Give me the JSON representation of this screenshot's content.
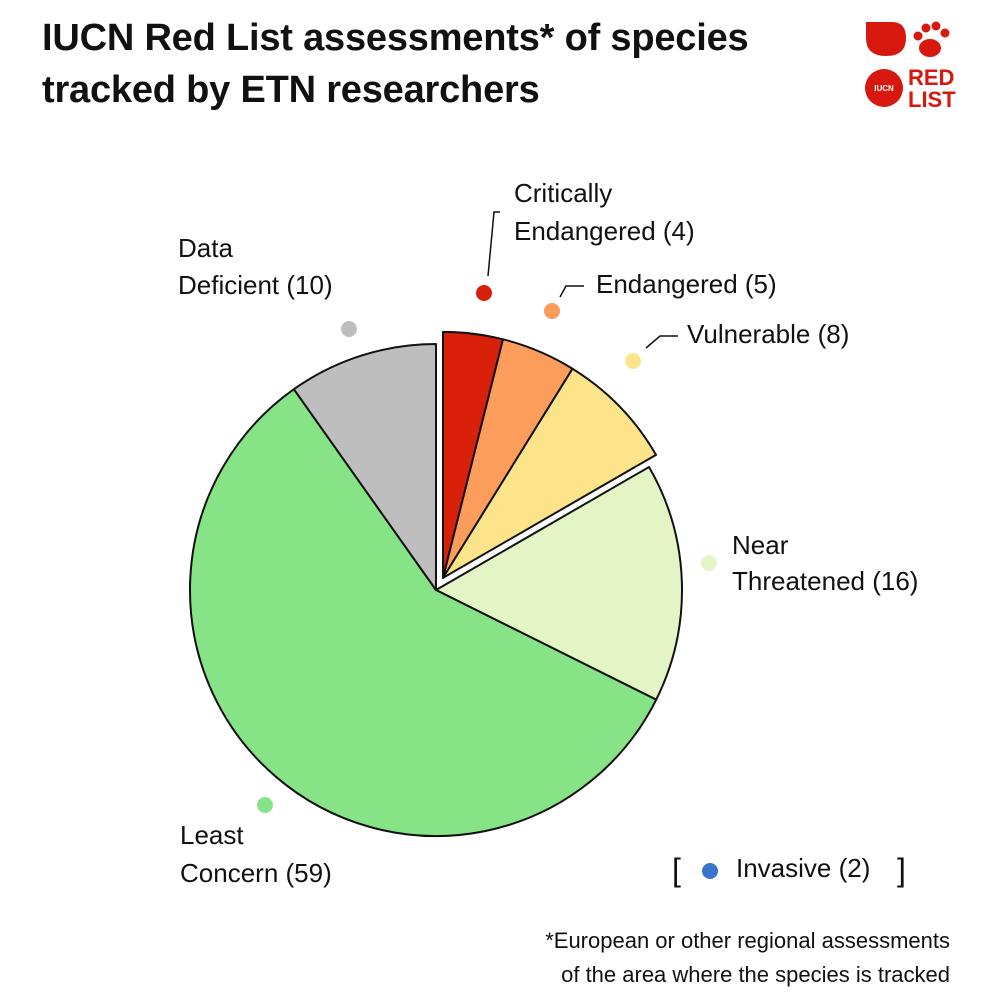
{
  "title_line1": "IUCN Red List assessments* of species",
  "title_line2": "tracked by ETN researchers",
  "logo": {
    "line1": "RED",
    "line2": "LIST",
    "badge": "IUCN",
    "color": "#d7180f"
  },
  "chart_data": {
    "type": "pie",
    "start_angle_deg": 0,
    "direction": "clockwise",
    "slices": [
      {
        "label_lines": [
          "Critically",
          "Endangered (4)"
        ],
        "category": "Critically Endangered",
        "value": 4,
        "color": "#d9200a",
        "exploded": true
      },
      {
        "label_lines": [
          "Endangered (5)"
        ],
        "category": "Endangered",
        "value": 5,
        "color": "#fc9d5b",
        "exploded": true
      },
      {
        "label_lines": [
          "Vulnerable (8)"
        ],
        "category": "Vulnerable",
        "value": 8,
        "color": "#fde48a",
        "exploded": true
      },
      {
        "label_lines": [
          "Near",
          "Threatened (16)"
        ],
        "category": "Near Threatened",
        "value": 16,
        "color": "#e3f5c4",
        "exploded": false
      },
      {
        "label_lines": [
          "Least",
          "Concern (59)"
        ],
        "category": "Least Concern",
        "value": 59,
        "color": "#86e486",
        "exploded": false
      },
      {
        "label_lines": [
          "Data",
          "Deficient (10)"
        ],
        "category": "Data Deficient",
        "value": 10,
        "color": "#bebebe",
        "exploded": false
      }
    ],
    "extra_legend": {
      "label": "Invasive (2)",
      "value": 2,
      "color": "#3a73cc",
      "bracket_open": "[",
      "bracket_close": "]"
    }
  },
  "footnote_line1": "*European or other regional assessments",
  "footnote_line2": "of the area where the species is tracked"
}
